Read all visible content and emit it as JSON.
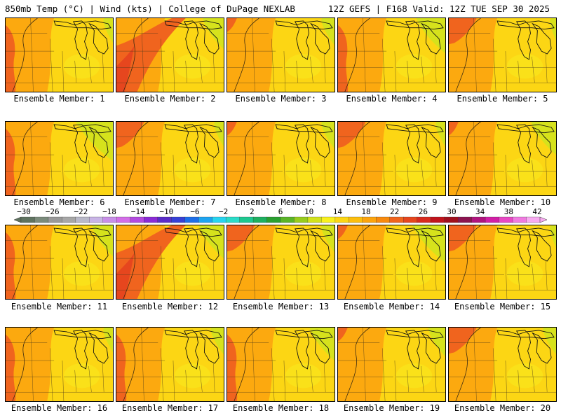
{
  "header": {
    "left": "850mb Temp (°C) | Wind (kts) | College of DuPage NEXLAB",
    "right": "12Z GEFS | F168 Valid: 12Z TUE SEP 30 2025"
  },
  "members": [
    {
      "label": "Ensemble Member: 1",
      "hot": "west",
      "cool_ne": 0.2
    },
    {
      "label": "Ensemble Member: 2",
      "hot": "southwest",
      "cool_ne": 0.5
    },
    {
      "label": "Ensemble Member: 3",
      "hot": "weak",
      "cool_ne": 0.3
    },
    {
      "label": "Ensemble Member: 4",
      "hot": "west",
      "cool_ne": 0.7
    },
    {
      "label": "Ensemble Member: 5",
      "hot": "northwest",
      "cool_ne": 0.1
    },
    {
      "label": "Ensemble Member: 6",
      "hot": "west",
      "cool_ne": 0.9
    },
    {
      "label": "Ensemble Member: 7",
      "hot": "northwest",
      "cool_ne": 0.2
    },
    {
      "label": "Ensemble Member: 8",
      "hot": "weak",
      "cool_ne": 0.3
    },
    {
      "label": "Ensemble Member: 9",
      "hot": "northwest",
      "cool_ne": 0.2
    },
    {
      "label": "Ensemble Member: 10",
      "hot": "weak",
      "cool_ne": 0.6
    },
    {
      "label": "Ensemble Member: 11",
      "hot": "west",
      "cool_ne": 0.5
    },
    {
      "label": "Ensemble Member: 12",
      "hot": "southwest",
      "cool_ne": 0.6
    },
    {
      "label": "Ensemble Member: 13",
      "hot": "northwest",
      "cool_ne": 0.3
    },
    {
      "label": "Ensemble Member: 14",
      "hot": "weak",
      "cool_ne": 0.8
    },
    {
      "label": "Ensemble Member: 15",
      "hot": "northwest",
      "cool_ne": 0.1
    },
    {
      "label": "Ensemble Member: 16",
      "hot": "west",
      "cool_ne": 0.2
    },
    {
      "label": "Ensemble Member: 17",
      "hot": "west",
      "cool_ne": 0.3
    },
    {
      "label": "Ensemble Member: 18",
      "hot": "west",
      "cool_ne": 0.6
    },
    {
      "label": "Ensemble Member: 19",
      "hot": "weak",
      "cool_ne": 0.4
    },
    {
      "label": "Ensemble Member: 20",
      "hot": "northwest",
      "cool_ne": 0.3
    }
  ],
  "colorbar": {
    "labels": [
      "−30",
      "−26",
      "−22",
      "−18",
      "−14",
      "−10",
      "−6",
      "−2",
      "2",
      "6",
      "10",
      "14",
      "18",
      "22",
      "26",
      "30",
      "34",
      "38",
      "42"
    ],
    "colors": [
      "#5f7360",
      "#7b8b7c",
      "#999999",
      "#a7a7a7",
      "#b9b9c9",
      "#c8b4e6",
      "#c88fe8",
      "#d36de8",
      "#b34ae0",
      "#8a2bd6",
      "#5a2cc8",
      "#3640d6",
      "#1d6ee8",
      "#1ea4f0",
      "#28d4f0",
      "#2adcc8",
      "#1ec890",
      "#1eb060",
      "#2aa030",
      "#5ab428",
      "#98cc1e",
      "#d2e21c",
      "#f8f01e",
      "#fcd614",
      "#fcbe0e",
      "#fca40e",
      "#f88a0e",
      "#f0641e",
      "#e6461e",
      "#d82a1e",
      "#c0141c",
      "#a0101e",
      "#8c1450",
      "#b0147e",
      "#d21ea6",
      "#e848c4",
      "#f07ae0",
      "#f8aaf0"
    ]
  },
  "palette": {
    "cool": "#d6e21c",
    "mid": "#fcd614",
    "warm": "#fca40e",
    "hot": "#f0641e",
    "hotter": "#e6461e"
  }
}
